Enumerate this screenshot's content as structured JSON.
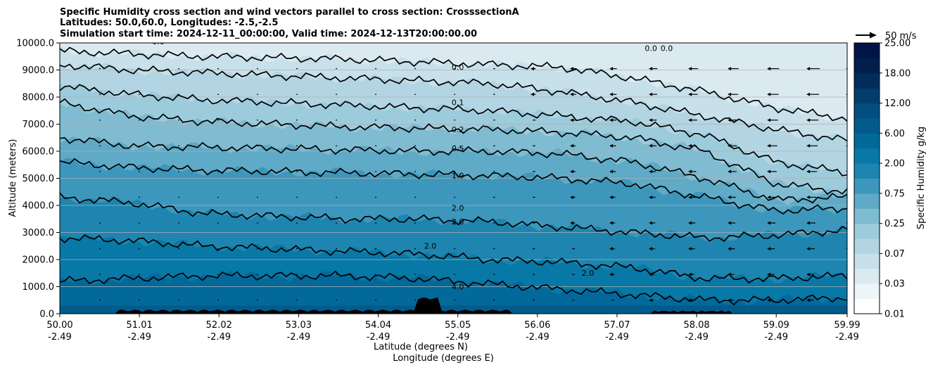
{
  "chart_data": {
    "type": "contour",
    "title": [
      "Specific Humidity cross section and wind vectors parallel to cross section: CrosssectionA",
      "Latitudes: 50.0,60.0, Longitudes: -2.5,-2.5",
      "Simulation start time: 2024-12-11_00:00:00, Valid time: 2024-12-13T20:00:00.00"
    ],
    "xlabel_lat": "Latitude (degrees N)",
    "xlabel_lon": "Longitude (degrees E)",
    "ylabel": "Altitude (meters)",
    "ylim": [
      0,
      10000
    ],
    "xlim": [
      50.0,
      59.99
    ],
    "yticks": [
      "0.0",
      "1000.0",
      "2000.0",
      "3000.0",
      "4000.0",
      "5000.0",
      "6000.0",
      "7000.0",
      "8000.0",
      "9000.0",
      "10000.0"
    ],
    "ytick_values": [
      0,
      1000,
      2000,
      3000,
      4000,
      5000,
      6000,
      7000,
      8000,
      9000,
      10000
    ],
    "xticks_lat": [
      "50.00",
      "51.01",
      "52.02",
      "53.03",
      "54.04",
      "55.05",
      "56.06",
      "57.07",
      "58.08",
      "59.09",
      "59.99"
    ],
    "xticks_lon": [
      "-2.49",
      "-2.49",
      "-2.49",
      "-2.49",
      "-2.49",
      "-2.49",
      "-2.49",
      "-2.49",
      "-2.49",
      "-2.49",
      "-2.49"
    ],
    "xtick_values": [
      50.0,
      51.01,
      52.02,
      53.03,
      54.04,
      55.05,
      56.06,
      57.07,
      58.08,
      59.09,
      59.99
    ],
    "grid_horizontal": true,
    "colorbar": {
      "label": "Specific Humidity g/kg",
      "ticks": [
        "0.01",
        "0.03",
        "0.07",
        "0.25",
        "0.75",
        "2.00",
        "6.00",
        "12.00",
        "18.00",
        "25.00"
      ]
    },
    "quiver_key": "50 m/s",
    "contour_labels": [
      {
        "text": "0.0",
        "lat": 55.05,
        "alt": 9000
      },
      {
        "text": "0.1",
        "lat": 55.05,
        "alt": 7700
      },
      {
        "text": "0.2",
        "lat": 55.05,
        "alt": 6700
      },
      {
        "text": "0.5",
        "lat": 55.05,
        "alt": 6000
      },
      {
        "text": "1.0",
        "lat": 55.05,
        "alt": 5000
      },
      {
        "text": "2.0",
        "lat": 55.05,
        "alt": 3800
      },
      {
        "text": "2.0",
        "lat": 55.05,
        "alt": 3300
      },
      {
        "text": "2.0",
        "lat": 54.7,
        "alt": 2400
      },
      {
        "text": "2.0",
        "lat": 56.7,
        "alt": 1400
      },
      {
        "text": "4.0",
        "lat": 55.05,
        "alt": 900
      },
      {
        "text": "0.0",
        "lat": 51.25,
        "alt": 9950
      },
      {
        "text": "0.0",
        "lat": 57.5,
        "alt": 9700
      },
      {
        "text": "0.0",
        "lat": 57.7,
        "alt": 9700
      }
    ],
    "bands": [
      {
        "color": "#dbeaf1",
        "alt": [
          10000,
          10000,
          10000,
          10000,
          10000,
          10000,
          10000,
          10000,
          10000,
          10000,
          10000,
          10000
        ]
      },
      {
        "color": "#c7e0ea",
        "alt": [
          9700,
          9600,
          9500,
          9450,
          9400,
          9300,
          9200,
          9100,
          8700,
          8200,
          7600,
          7200
        ]
      },
      {
        "color": "#b3d5e3",
        "alt": [
          9200,
          9000,
          8900,
          8800,
          8700,
          8600,
          8500,
          8200,
          7800,
          7300,
          6800,
          6400
        ]
      },
      {
        "color": "#9ccbdc",
        "alt": [
          8400,
          8100,
          7900,
          7800,
          7700,
          7600,
          7500,
          7300,
          7100,
          6600,
          5600,
          5200
        ]
      },
      {
        "color": "#7fbbd1",
        "alt": [
          7800,
          7300,
          7100,
          7000,
          6900,
          6850,
          6800,
          6700,
          6500,
          6000,
          4800,
          4500
        ]
      },
      {
        "color": "#5eaac7",
        "alt": [
          6500,
          6200,
          6150,
          6100,
          6050,
          6000,
          6000,
          5900,
          5600,
          5000,
          4200,
          4300
        ]
      },
      {
        "color": "#3d97bc",
        "alt": [
          5600,
          5400,
          5300,
          5250,
          5200,
          5150,
          5100,
          5000,
          4800,
          4300,
          3800,
          3900
        ]
      },
      {
        "color": "#1d85af",
        "alt": [
          4300,
          4100,
          3700,
          3600,
          3500,
          3500,
          3400,
          3200,
          3000,
          2800,
          2900,
          3100
        ]
      },
      {
        "color": "#0878a6",
        "alt": [
          2800,
          2700,
          2500,
          2400,
          2300,
          2200,
          2000,
          1900,
          1700,
          1300,
          1300,
          1400
        ]
      },
      {
        "color": "#03699b",
        "alt": [
          1200,
          1300,
          1400,
          1400,
          1400,
          1300,
          1100,
          900,
          700,
          500,
          500,
          600
        ]
      },
      {
        "color": "#035b8d",
        "alt": [
          300,
          300,
          300,
          300,
          300,
          300,
          300,
          300,
          300,
          300,
          300,
          300
        ]
      }
    ]
  }
}
